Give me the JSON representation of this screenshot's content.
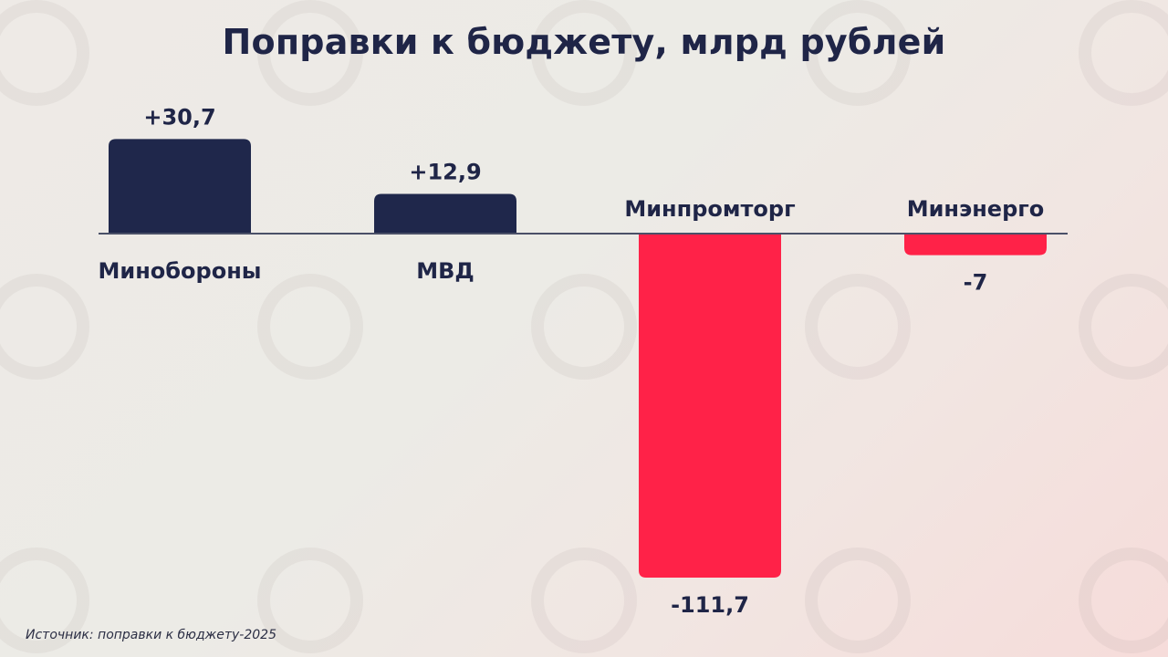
{
  "title": "Поправки к бюджету, млрд рублей",
  "source": "Источник: поправки к бюджету-2025",
  "colors": {
    "positive": "#1f274b",
    "negative": "#ff2248",
    "text": "#1f2547",
    "axis": "#4a5068"
  },
  "chart_data": {
    "type": "bar",
    "title": "Поправки к бюджету, млрд рублей",
    "categories": [
      "Минобороны",
      "МВД",
      "Минпромторг",
      "Минэнерго"
    ],
    "values": [
      30.7,
      12.9,
      -111.7,
      -7
    ],
    "value_labels": [
      "+30,7",
      "+12,9",
      "-111,7",
      "-7"
    ],
    "xlabel": "",
    "ylabel": "",
    "ylim": [
      -111.7,
      30.7
    ],
    "grid": false,
    "legend": "none"
  }
}
